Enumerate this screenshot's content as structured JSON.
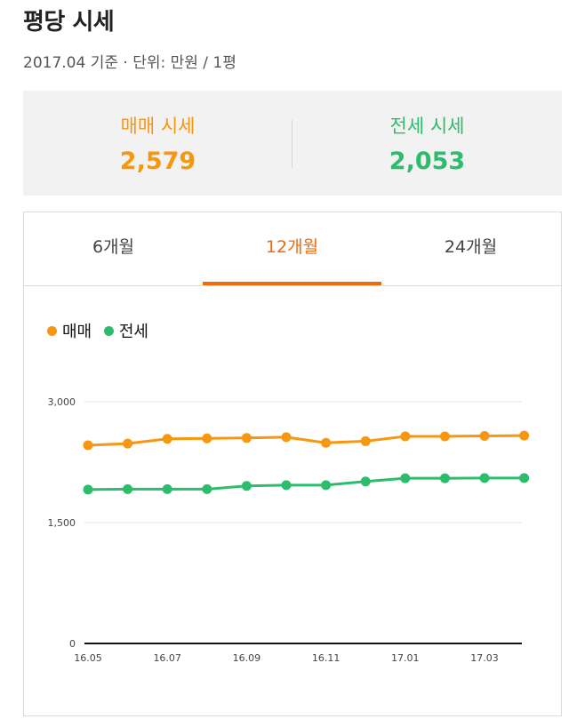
{
  "header": {
    "title": "평당 시세",
    "subtitle": "2017.04 기준 · 단위: 만원 / 1평"
  },
  "summary": {
    "sale_label": "매매 시세",
    "sale_value": "2,579",
    "jeonse_label": "전세 시세",
    "jeonse_value": "2,053"
  },
  "tabs": [
    {
      "label": "6개월",
      "active": false
    },
    {
      "label": "12개월",
      "active": true
    },
    {
      "label": "24개월",
      "active": false
    }
  ],
  "colors": {
    "sale": "#f7960f",
    "jeonse": "#2cbd6c",
    "tab_active": "#f06a0f"
  },
  "chart_data": {
    "type": "line",
    "x": [
      "16.05",
      "16.06",
      "16.07",
      "16.08",
      "16.09",
      "16.10",
      "16.11",
      "16.12",
      "17.01",
      "17.02",
      "17.03",
      "17.04"
    ],
    "x_tick_labels": [
      "16.05",
      "16.07",
      "16.09",
      "16.11",
      "17.01",
      "17.03"
    ],
    "y_ticks": [
      0,
      1500,
      3000
    ],
    "y_tick_labels": [
      "0",
      "1,500",
      "3,000"
    ],
    "ylim": [
      0,
      3000
    ],
    "grid": true,
    "legend_position": "top-left",
    "series": [
      {
        "name": "매매",
        "color": "#f7960f",
        "values": [
          2460,
          2480,
          2540,
          2545,
          2550,
          2560,
          2490,
          2510,
          2570,
          2570,
          2575,
          2579
        ]
      },
      {
        "name": "전세",
        "color": "#2cbd6c",
        "values": [
          1910,
          1915,
          1915,
          1915,
          1955,
          1965,
          1965,
          2010,
          2050,
          2050,
          2053,
          2053
        ]
      }
    ]
  }
}
